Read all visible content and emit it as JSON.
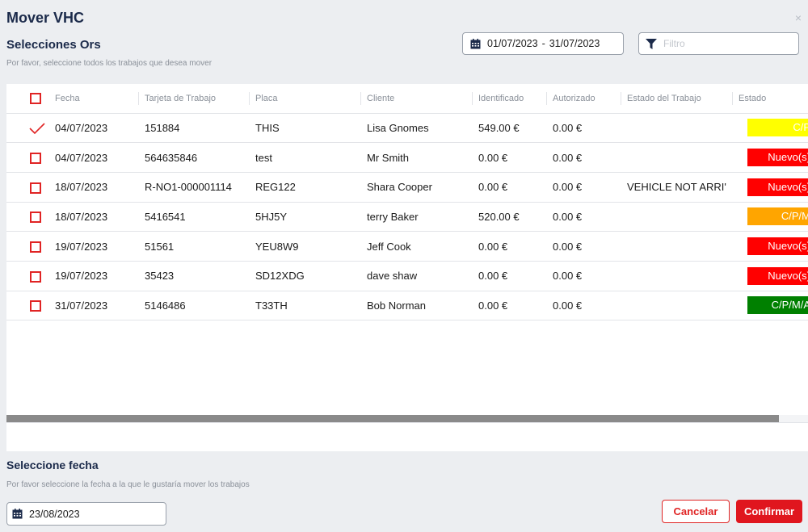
{
  "header": {
    "title": "Mover VHC",
    "close_label": "×",
    "subtitle": "Selecciones Ors",
    "hint": "Por favor, seleccione todos los trabajos que desea mover"
  },
  "date_range": {
    "start": "01/07/2023",
    "separator": "-",
    "end": "31/07/2023"
  },
  "filter": {
    "placeholder": "Filtro",
    "value": ""
  },
  "table": {
    "columns": [
      "Fecha",
      "Tarjeta de Trabajo",
      "Placa",
      "Cliente",
      "Identificado",
      "Autorizado",
      "Estado del Trabajo",
      "Estado"
    ],
    "rows": [
      {
        "selected": true,
        "fecha": "04/07/2023",
        "tarjeta": "151884",
        "placa": "THIS",
        "cliente": "Lisa Gnomes",
        "identificado": "549.00 €",
        "autorizado": "0.00 €",
        "estado_trabajo": "",
        "estado": "C/P",
        "estado_color": "#ffff00"
      },
      {
        "selected": false,
        "fecha": "04/07/2023",
        "tarjeta": "564635846",
        "placa": "test",
        "cliente": "Mr Smith",
        "identificado": "0.00 €",
        "autorizado": "0.00 €",
        "estado_trabajo": "",
        "estado": "Nuevo(s)",
        "estado_color": "#ff0000"
      },
      {
        "selected": false,
        "fecha": "18/07/2023",
        "tarjeta": "R-NO1-000001114",
        "placa": "REG122",
        "cliente": "Shara Cooper",
        "identificado": "0.00 €",
        "autorizado": "0.00 €",
        "estado_trabajo": "VEHICLE NOT ARRI'",
        "estado": "Nuevo(s)",
        "estado_color": "#ff0000"
      },
      {
        "selected": false,
        "fecha": "18/07/2023",
        "tarjeta": "5416541",
        "placa": "5HJ5Y",
        "cliente": "terry Baker",
        "identificado": "520.00 €",
        "autorizado": "0.00 €",
        "estado_trabajo": "",
        "estado": "C/P/M",
        "estado_color": "#ffa500"
      },
      {
        "selected": false,
        "fecha": "19/07/2023",
        "tarjeta": "51561",
        "placa": "YEU8W9",
        "cliente": "Jeff Cook",
        "identificado": "0.00 €",
        "autorizado": "0.00 €",
        "estado_trabajo": "",
        "estado": "Nuevo(s)",
        "estado_color": "#ff0000"
      },
      {
        "selected": false,
        "fecha": "19/07/2023",
        "tarjeta": "35423",
        "placa": "SD12XDG",
        "cliente": "dave shaw",
        "identificado": "0.00 €",
        "autorizado": "0.00 €",
        "estado_trabajo": "",
        "estado": "Nuevo(s)",
        "estado_color": "#ff0000"
      },
      {
        "selected": false,
        "fecha": "31/07/2023",
        "tarjeta": "5146486",
        "placa": "T33TH",
        "cliente": "Bob Norman",
        "identificado": "0.00 €",
        "autorizado": "0.00 €",
        "estado_trabajo": "",
        "estado": "C/P/M/A",
        "estado_color": "#008000"
      }
    ]
  },
  "target": {
    "title": "Seleccione fecha",
    "hint": "Por favor seleccione la fecha a la que le gustaría mover los trabajos",
    "date": "23/08/2023"
  },
  "buttons": {
    "cancel": "Cancelar",
    "confirm": "Confirmar"
  },
  "colors": {
    "accent": "#e0161e",
    "heading": "#1b2a4a"
  }
}
